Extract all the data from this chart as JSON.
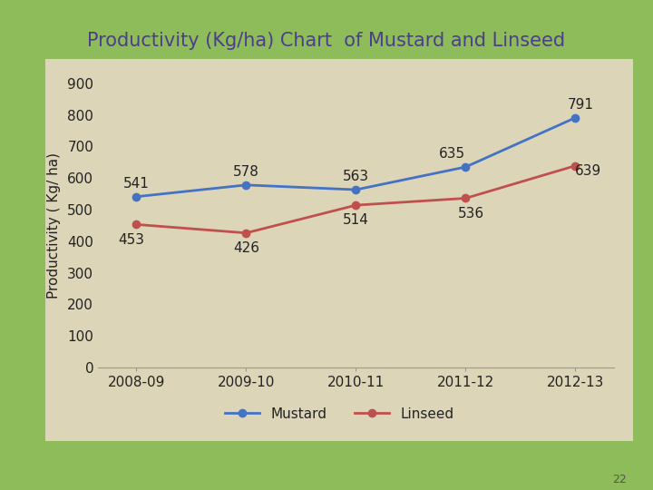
{
  "title": "Productivity (Kg/ha) Chart  of Mustard and Linseed",
  "title_color": "#4B3F8C",
  "ylabel": "Productivity ( Kg/ ha)",
  "categories": [
    "2008-09",
    "2009-10",
    "2010-11",
    "2011-12",
    "2012-13"
  ],
  "mustard_values": [
    541,
    578,
    563,
    635,
    791
  ],
  "linseed_values": [
    453,
    426,
    514,
    536,
    639
  ],
  "mustard_color": "#4472C4",
  "linseed_color": "#C0504D",
  "ylim": [
    0,
    900
  ],
  "yticks": [
    0,
    100,
    200,
    300,
    400,
    500,
    600,
    700,
    800,
    900
  ],
  "background_outer": "#8FBC5A",
  "background_inner": "#DDD5B8",
  "page_number": "22",
  "annotation_fontsize": 11,
  "title_fontsize": 15,
  "ylabel_fontsize": 11,
  "tick_fontsize": 11,
  "legend_fontsize": 11
}
